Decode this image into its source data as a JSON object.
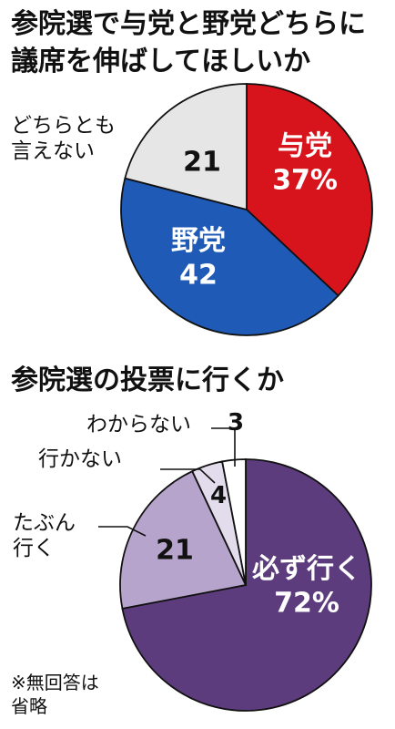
{
  "chart_data": [
    {
      "type": "pie",
      "title": [
        "参院選で与党と野党どちらに",
        "議席を伸ばしてほしいか"
      ],
      "slices": [
        {
          "label": "与党",
          "value": 37,
          "value_text": "37%",
          "color": "#d7131c",
          "text_color": "#ffffff"
        },
        {
          "label": "野党",
          "value": 42,
          "value_text": "42",
          "color": "#1f5bb6",
          "text_color": "#ffffff"
        },
        {
          "label": "どちらとも言えない",
          "label_lines": [
            "どちらとも",
            "言えない"
          ],
          "value": 21,
          "value_text": "21",
          "color": "#e6e6e6",
          "text_color": "#111111"
        }
      ]
    },
    {
      "type": "pie",
      "title": "参院選の投票に行くか",
      "slices": [
        {
          "label": "必ず行く",
          "value": 72,
          "value_text": "72%",
          "color": "#5c3c7c",
          "text_color": "#ffffff"
        },
        {
          "label": "たぶん行く",
          "label_lines": [
            "たぶん",
            "行く"
          ],
          "value": 21,
          "value_text": "21",
          "color": "#b7a4cc",
          "text_color": "#111111"
        },
        {
          "label": "行かない",
          "value": 4,
          "value_text": "4",
          "color": "#e3dcec",
          "text_color": "#111111"
        },
        {
          "label": "わからない",
          "value": 3,
          "value_text": "3",
          "color": "#ffffff",
          "text_color": "#111111"
        }
      ]
    }
  ],
  "note": [
    "※無回答は",
    "省略"
  ]
}
